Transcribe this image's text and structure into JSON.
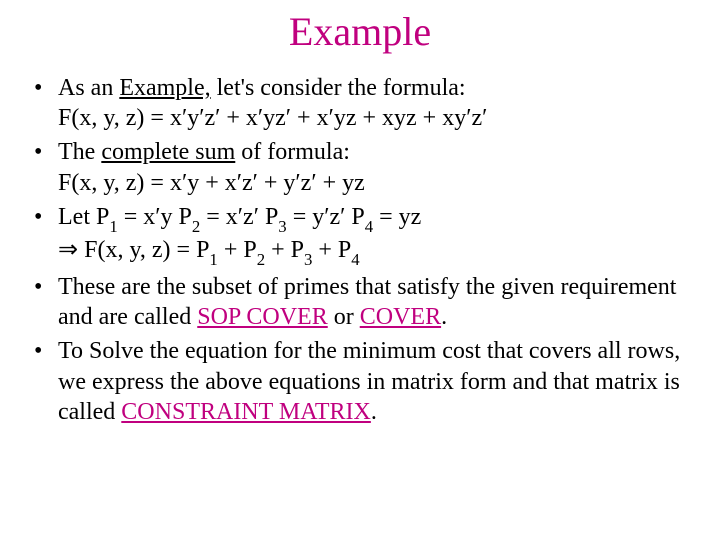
{
  "title": {
    "text": "Example",
    "color": "#c0007f"
  },
  "bullets": [
    {
      "parts": [
        {
          "t": "As an "
        },
        {
          "t": "Example,",
          "u": true
        },
        {
          "t": " let's consider the formula:"
        }
      ],
      "line2": "F(x, y, z) =  x′y′z′ + x′yz′ + x′yz + xyz + xy′z′"
    },
    {
      "parts": [
        {
          "t": "The "
        },
        {
          "t": "complete sum",
          "u": true
        },
        {
          "t": " of  formula:"
        }
      ],
      "line2": "F(x, y, z) = x′y + x′z′ + y′z′ + yz"
    },
    {
      "parts": [
        {
          "t": "Let P"
        },
        {
          "t": "1",
          "sub": true
        },
        {
          "t": " = x′y   P"
        },
        {
          "t": "2",
          "sub": true
        },
        {
          "t": " = x′z′    P"
        },
        {
          "t": "3",
          "sub": true
        },
        {
          "t": " = y′z′    P"
        },
        {
          "t": "4",
          "sub": true
        },
        {
          "t": " = yz"
        }
      ],
      "line2_parts": [
        {
          "t": "⇒ ",
          "cls": "implies"
        },
        {
          "t": "F(x, y, z) = P"
        },
        {
          "t": "1",
          "sub": true
        },
        {
          "t": " + P"
        },
        {
          "t": "2",
          "sub": true
        },
        {
          "t": " + P"
        },
        {
          "t": "3",
          "sub": true
        },
        {
          "t": " + P"
        },
        {
          "t": "4",
          "sub": true
        }
      ]
    },
    {
      "parts": [
        {
          "t": "These are the subset of primes that satisfy the given requirement and are called "
        },
        {
          "t": "SOP COVER",
          "u": true,
          "color": "#c0007f"
        },
        {
          "t": "  or "
        },
        {
          "t": "COVER",
          "u": true,
          "color": "#c0007f"
        },
        {
          "t": "."
        }
      ]
    },
    {
      "parts": [
        {
          "t": "To Solve the equation for the minimum cost that covers all rows, we express the above equations in matrix form and that matrix is called "
        },
        {
          "t": "CONSTRAINT MATRIX",
          "u": true,
          "color": "#c0007f"
        },
        {
          "t": "."
        }
      ]
    }
  ]
}
